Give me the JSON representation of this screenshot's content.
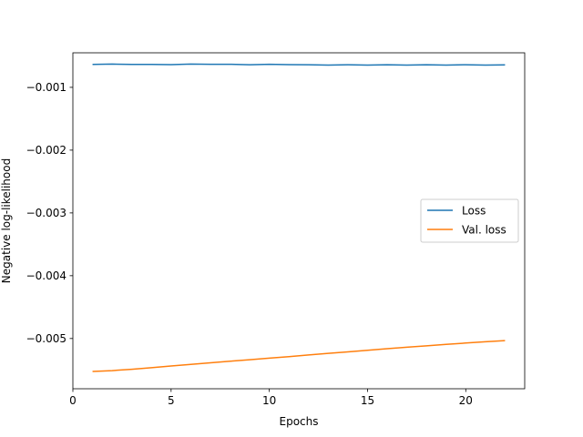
{
  "chart_data": {
    "type": "line",
    "xlabel": "Epochs",
    "ylabel": "Negative log-likelihood",
    "xlim": [
      0,
      23
    ],
    "ylim": [
      -0.0058,
      -0.00045
    ],
    "grid": false,
    "legend_position": "center-right",
    "x_ticks": [
      0,
      5,
      10,
      15,
      20
    ],
    "y_ticks": [
      -0.001,
      -0.002,
      -0.003,
      -0.004,
      -0.005
    ],
    "x_tick_labels": [
      "0",
      "5",
      "10",
      "15",
      "20"
    ],
    "y_tick_labels": [
      "−0.001",
      "−0.002",
      "−0.003",
      "−0.004",
      "−0.005"
    ],
    "x": [
      1,
      2,
      3,
      4,
      5,
      6,
      7,
      8,
      9,
      10,
      11,
      12,
      13,
      14,
      15,
      16,
      17,
      18,
      19,
      20,
      21,
      22
    ],
    "series": [
      {
        "name": "Loss",
        "color": "#1f77b4",
        "values": [
          -0.000635,
          -0.00063,
          -0.000635,
          -0.000635,
          -0.000638,
          -0.00063,
          -0.000633,
          -0.000633,
          -0.00064,
          -0.000633,
          -0.000638,
          -0.00064,
          -0.000645,
          -0.00064,
          -0.000645,
          -0.00064,
          -0.000645,
          -0.00064,
          -0.000645,
          -0.00064,
          -0.000645,
          -0.000643
        ]
      },
      {
        "name": "Val. loss",
        "color": "#ff7f0e",
        "values": [
          -0.005525,
          -0.005511,
          -0.00549,
          -0.005464,
          -0.005438,
          -0.005412,
          -0.005387,
          -0.005362,
          -0.005337,
          -0.005313,
          -0.005288,
          -0.005262,
          -0.005237,
          -0.005212,
          -0.005188,
          -0.005163,
          -0.005138,
          -0.005116,
          -0.005094,
          -0.005072,
          -0.005051,
          -0.005033
        ]
      }
    ]
  }
}
